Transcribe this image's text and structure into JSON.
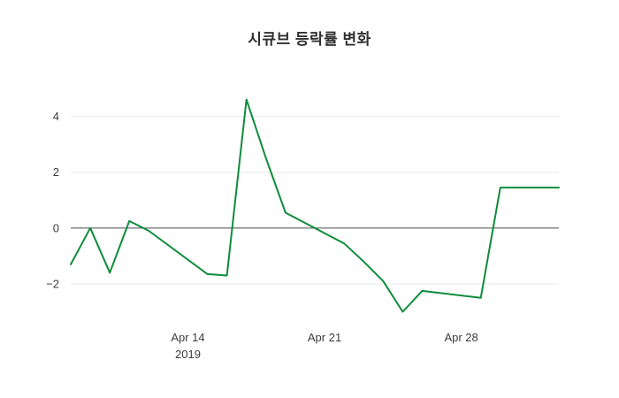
{
  "page": {
    "background": "#ffffff"
  },
  "chart_data": {
    "type": "line",
    "title": "시큐브 등락률 변화",
    "xlabel": "",
    "ylabel": "",
    "legend": "none",
    "grid": "horizontal",
    "zero_line": true,
    "line_color": "#0f8c3b",
    "grid_color": "#e8e8e8",
    "zero_line_color": "#4a4a4a",
    "tick_color": "#3d3d3d",
    "plot_background": "#ffffff",
    "xlim": [
      "2019-04-08",
      "2019-05-03"
    ],
    "ylim": [
      -3.3,
      5.0
    ],
    "y_ticks": [
      -2,
      0,
      2,
      4
    ],
    "x_ticks": [
      {
        "date": "2019-04-14",
        "label": "Apr 14",
        "sublabel": "2019"
      },
      {
        "date": "2019-04-21",
        "label": "Apr 21",
        "sublabel": ""
      },
      {
        "date": "2019-04-28",
        "label": "Apr 28",
        "sublabel": ""
      }
    ],
    "series": [
      {
        "name": "등락률",
        "color": "#0f8c3b",
        "x": [
          "2019-04-08",
          "2019-04-09",
          "2019-04-10",
          "2019-04-11",
          "2019-04-12",
          "2019-04-15",
          "2019-04-16",
          "2019-04-17",
          "2019-04-18",
          "2019-04-19",
          "2019-04-22",
          "2019-04-23",
          "2019-04-24",
          "2019-04-25",
          "2019-04-26",
          "2019-04-29",
          "2019-04-30",
          "2019-05-02",
          "2019-05-03"
        ],
        "values": [
          -1.3,
          0.0,
          -1.6,
          0.25,
          -0.1,
          -1.65,
          -1.7,
          4.6,
          2.5,
          0.55,
          -0.55,
          -1.2,
          -1.9,
          -3.0,
          -2.25,
          -2.5,
          1.45,
          1.45,
          1.45
        ]
      }
    ]
  }
}
